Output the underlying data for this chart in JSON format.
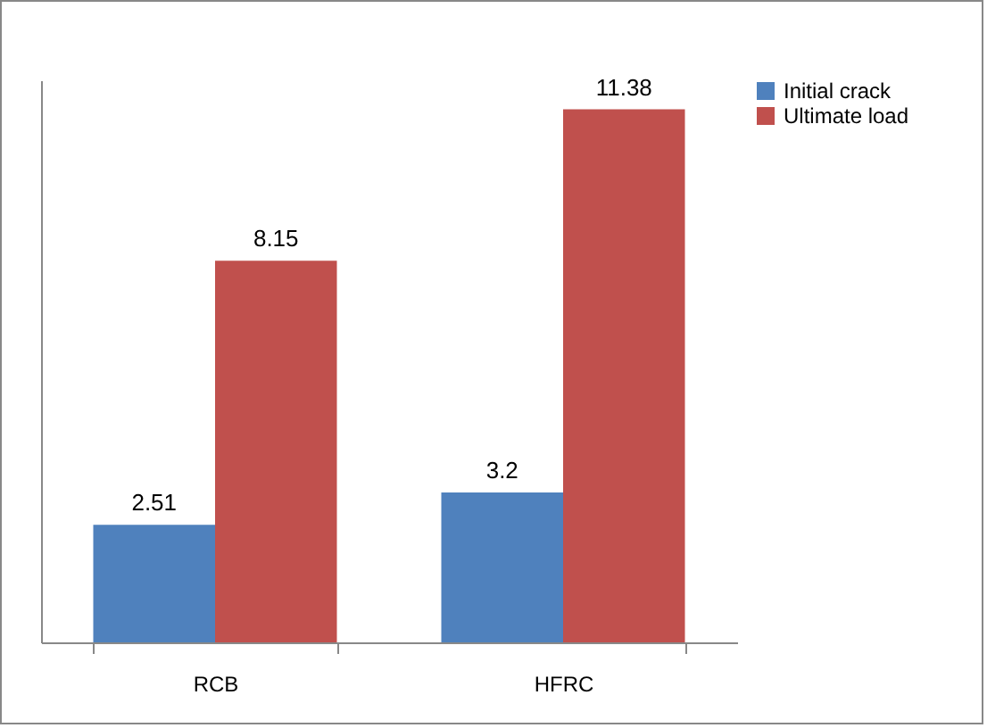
{
  "chart_data": {
    "type": "bar",
    "categories": [
      "RCB",
      "HFRC"
    ],
    "series": [
      {
        "name": "Initial crack",
        "color": "#4f81bd",
        "values": [
          2.51,
          3.2
        ]
      },
      {
        "name": "Ultimate load",
        "color": "#c0504d",
        "values": [
          8.15,
          11.38
        ]
      }
    ],
    "data_labels": true,
    "legend": "right",
    "grid": false,
    "tick_labels": "x"
  }
}
